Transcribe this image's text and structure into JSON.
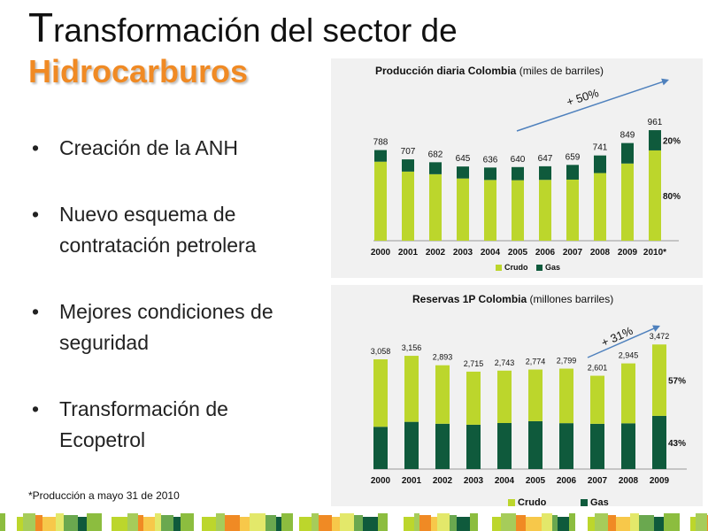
{
  "slide": {
    "title_first": "T",
    "title_rest": "ransformación del sector de",
    "subtitle": "Hidrocarburos",
    "bullets": [
      "Creación de la ANH",
      "Nuevo esquema de contratación petrolera",
      "Mejores condiciones de seguridad",
      "Transformación de Ecopetrol"
    ],
    "bullet_symbol": "•",
    "footnote": "*Producción a mayo 31 de 2010"
  },
  "colors": {
    "crudo": "#bcd62c",
    "gas": "#0f5a3c",
    "accent": "#f08a24",
    "arrow": "#4f81bd"
  },
  "chart_data": [
    {
      "type": "bar",
      "stacked": true,
      "title_bold": "Producción diaria Colombia",
      "title_rest": " (miles de barriles)",
      "categories": [
        "2000",
        "2001",
        "2002",
        "2003",
        "2004",
        "2005",
        "2006",
        "2007",
        "2008",
        "2009",
        "2010*"
      ],
      "totals": [
        788,
        707,
        682,
        645,
        636,
        640,
        647,
        659,
        741,
        849,
        961
      ],
      "total_labels": [
        "788",
        "707",
        "682",
        "645",
        "636",
        "640",
        "647",
        "659",
        "741",
        "849",
        "961"
      ],
      "series": [
        {
          "name": "Crudo",
          "values": [
            687,
            601,
            578,
            541,
            528,
            526,
            529,
            531,
            588,
            671,
            785
          ]
        },
        {
          "name": "Gas",
          "values": [
            101,
            106,
            104,
            104,
            108,
            114,
            118,
            128,
            153,
            178,
            176
          ]
        }
      ],
      "share_labels": {
        "gas": "20%",
        "crudo": "80%"
      },
      "growth_label": "+ 50%",
      "ylim": [
        0,
        1000
      ],
      "legend": "bottom"
    },
    {
      "type": "bar",
      "stacked": true,
      "title_bold": "Reservas  1P Colombia",
      "title_rest": " (millones barriles)",
      "categories": [
        "2000",
        "2001",
        "2002",
        "2003",
        "2004",
        "2005",
        "2006",
        "2007",
        "2008",
        "2009"
      ],
      "totals": [
        3058,
        3156,
        2893,
        2715,
        2743,
        2774,
        2799,
        2601,
        2945,
        3472
      ],
      "total_labels": [
        "3,058",
        "3,156",
        "2,893",
        "2,715",
        "2,743",
        "2,774",
        "2,799",
        "2,601",
        "2,945",
        "3,472"
      ],
      "series": [
        {
          "name": "Crudo",
          "values": [
            1880,
            1840,
            1630,
            1480,
            1460,
            1440,
            1520,
            1340,
            1670,
            1990
          ]
        },
        {
          "name": "Gas",
          "values": [
            1178,
            1316,
            1263,
            1235,
            1283,
            1334,
            1279,
            1261,
            1275,
            1482
          ]
        }
      ],
      "share_labels": {
        "gas": "43%",
        "crudo": "57%"
      },
      "growth_label": "+ 31%",
      "ylim": [
        0,
        3700
      ],
      "legend": "bottom"
    }
  ]
}
